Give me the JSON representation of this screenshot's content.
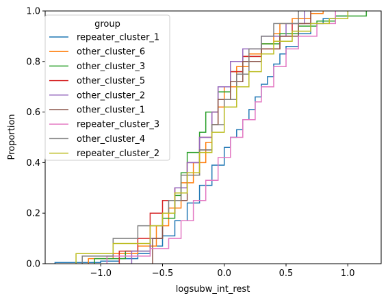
{
  "chart_data": {
    "type": "ecdf",
    "xlabel": "logsubw_int_rest",
    "ylabel": "Proportion",
    "xlim": [
      -1.45,
      1.27
    ],
    "ylim": [
      0,
      1
    ],
    "x_ticks": [
      -1.0,
      -0.5,
      0.0,
      0.5,
      1.0
    ],
    "x_tick_labels": [
      "−1.0",
      "−0.5",
      "0.0",
      "0.5",
      "1.0"
    ],
    "y_ticks": [
      0.0,
      0.2,
      0.4,
      0.6,
      0.8,
      1.0
    ],
    "y_tick_labels": [
      "0.0",
      "0.2",
      "0.4",
      "0.6",
      "0.8",
      "1.0"
    ],
    "grid": false,
    "legend": {
      "title": "group",
      "placement": "top-left"
    },
    "series": [
      {
        "name": "repeater_cluster_1",
        "color": "#1f77b4",
        "points": [
          [
            -1.37,
            0.0
          ],
          [
            -1.37,
            0.005
          ],
          [
            -1.0,
            0.01
          ],
          [
            -0.85,
            0.02
          ],
          [
            -0.7,
            0.04
          ],
          [
            -0.6,
            0.07
          ],
          [
            -0.5,
            0.11
          ],
          [
            -0.4,
            0.17
          ],
          [
            -0.3,
            0.24
          ],
          [
            -0.2,
            0.31
          ],
          [
            -0.1,
            0.39
          ],
          [
            0.0,
            0.46
          ],
          [
            0.05,
            0.5
          ],
          [
            0.1,
            0.53
          ],
          [
            0.15,
            0.57
          ],
          [
            0.2,
            0.61
          ],
          [
            0.25,
            0.66
          ],
          [
            0.3,
            0.71
          ],
          [
            0.35,
            0.74
          ],
          [
            0.4,
            0.79
          ],
          [
            0.45,
            0.83
          ],
          [
            0.5,
            0.86
          ],
          [
            0.6,
            0.91
          ],
          [
            0.7,
            0.95
          ],
          [
            0.8,
            0.97
          ],
          [
            0.9,
            0.98
          ],
          [
            1.0,
            1.0
          ]
        ]
      },
      {
        "name": "other_cluster_6",
        "color": "#ff7f0e",
        "points": [
          [
            -1.1,
            0.0
          ],
          [
            -1.1,
            0.02
          ],
          [
            -0.9,
            0.04
          ],
          [
            -0.7,
            0.07
          ],
          [
            -0.55,
            0.15
          ],
          [
            -0.45,
            0.22
          ],
          [
            -0.35,
            0.32
          ],
          [
            -0.25,
            0.4
          ],
          [
            -0.15,
            0.48
          ],
          [
            -0.1,
            0.55
          ],
          [
            -0.05,
            0.62
          ],
          [
            0.0,
            0.7
          ],
          [
            0.1,
            0.78
          ],
          [
            0.2,
            0.83
          ],
          [
            0.3,
            0.87
          ],
          [
            0.4,
            0.91
          ],
          [
            0.45,
            0.95
          ],
          [
            0.55,
            0.97
          ],
          [
            0.7,
            0.99
          ],
          [
            0.8,
            1.0
          ]
        ]
      },
      {
        "name": "other_cluster_3",
        "color": "#2ca02c",
        "points": [
          [
            -1.05,
            0.0
          ],
          [
            -1.05,
            0.02
          ],
          [
            -0.8,
            0.05
          ],
          [
            -0.6,
            0.1
          ],
          [
            -0.5,
            0.18
          ],
          [
            -0.4,
            0.27
          ],
          [
            -0.35,
            0.36
          ],
          [
            -0.3,
            0.44
          ],
          [
            -0.2,
            0.52
          ],
          [
            -0.15,
            0.6
          ],
          [
            -0.05,
            0.68
          ],
          [
            0.05,
            0.76
          ],
          [
            0.15,
            0.82
          ],
          [
            0.3,
            0.87
          ],
          [
            0.45,
            0.91
          ],
          [
            0.6,
            0.94
          ],
          [
            0.75,
            0.96
          ],
          [
            0.9,
            0.98
          ],
          [
            1.15,
            1.0
          ]
        ]
      },
      {
        "name": "other_cluster_5",
        "color": "#d62728",
        "points": [
          [
            -0.85,
            0.0
          ],
          [
            -0.85,
            0.05
          ],
          [
            -0.7,
            0.1
          ],
          [
            -0.6,
            0.2
          ],
          [
            -0.5,
            0.25
          ],
          [
            -0.4,
            0.3
          ],
          [
            -0.3,
            0.4
          ],
          [
            -0.2,
            0.5
          ],
          [
            -0.1,
            0.6
          ],
          [
            -0.05,
            0.7
          ],
          [
            0.05,
            0.76
          ],
          [
            0.15,
            0.82
          ],
          [
            0.3,
            0.85
          ],
          [
            0.45,
            0.9
          ],
          [
            0.55,
            0.95
          ],
          [
            0.7,
            1.0
          ]
        ]
      },
      {
        "name": "other_cluster_2",
        "color": "#9467bd",
        "points": [
          [
            -0.75,
            0.0
          ],
          [
            -0.75,
            0.05
          ],
          [
            -0.6,
            0.1
          ],
          [
            -0.5,
            0.2
          ],
          [
            -0.4,
            0.3
          ],
          [
            -0.3,
            0.4
          ],
          [
            -0.2,
            0.5
          ],
          [
            -0.1,
            0.6
          ],
          [
            -0.05,
            0.7
          ],
          [
            0.05,
            0.8
          ],
          [
            0.15,
            0.85
          ],
          [
            0.3,
            0.9
          ],
          [
            0.5,
            0.95
          ],
          [
            0.65,
            1.0
          ]
        ]
      },
      {
        "name": "other_cluster_1",
        "color": "#8c564b",
        "points": [
          [
            -0.58,
            0.0
          ],
          [
            -0.58,
            0.1
          ],
          [
            -0.5,
            0.2
          ],
          [
            -0.4,
            0.25
          ],
          [
            -0.3,
            0.35
          ],
          [
            -0.2,
            0.45
          ],
          [
            -0.1,
            0.55
          ],
          [
            -0.05,
            0.65
          ],
          [
            0.05,
            0.72
          ],
          [
            0.15,
            0.8
          ],
          [
            0.3,
            0.85
          ],
          [
            0.45,
            0.9
          ],
          [
            0.6,
            0.95
          ],
          [
            0.7,
            1.0
          ]
        ]
      },
      {
        "name": "repeater_cluster_3",
        "color": "#e377c2",
        "points": [
          [
            -0.95,
            0.0
          ],
          [
            -0.95,
            0.03
          ],
          [
            -0.6,
            0.06
          ],
          [
            -0.45,
            0.1
          ],
          [
            -0.35,
            0.17
          ],
          [
            -0.25,
            0.25
          ],
          [
            -0.15,
            0.33
          ],
          [
            -0.05,
            0.42
          ],
          [
            0.05,
            0.5
          ],
          [
            0.15,
            0.57
          ],
          [
            0.25,
            0.64
          ],
          [
            0.3,
            0.7
          ],
          [
            0.4,
            0.78
          ],
          [
            0.5,
            0.85
          ],
          [
            0.6,
            0.9
          ],
          [
            0.75,
            0.95
          ],
          [
            0.9,
            1.0
          ]
        ]
      },
      {
        "name": "other_cluster_4",
        "color": "#7f7f7f",
        "points": [
          [
            -1.15,
            0.0
          ],
          [
            -1.15,
            0.03
          ],
          [
            -0.9,
            0.1
          ],
          [
            -0.7,
            0.15
          ],
          [
            -0.5,
            0.2
          ],
          [
            -0.45,
            0.25
          ],
          [
            -0.35,
            0.35
          ],
          [
            -0.2,
            0.45
          ],
          [
            -0.1,
            0.55
          ],
          [
            0.0,
            0.65
          ],
          [
            0.1,
            0.75
          ],
          [
            0.2,
            0.85
          ],
          [
            0.3,
            0.9
          ],
          [
            0.4,
            0.95
          ],
          [
            0.6,
            1.0
          ]
        ]
      },
      {
        "name": "repeater_cluster_2",
        "color": "#bcbd22",
        "points": [
          [
            -1.2,
            0.0
          ],
          [
            -1.2,
            0.04
          ],
          [
            -0.9,
            0.08
          ],
          [
            -0.6,
            0.15
          ],
          [
            -0.5,
            0.2
          ],
          [
            -0.4,
            0.28
          ],
          [
            -0.3,
            0.36
          ],
          [
            -0.2,
            0.44
          ],
          [
            -0.1,
            0.52
          ],
          [
            0.0,
            0.62
          ],
          [
            0.1,
            0.7
          ],
          [
            0.2,
            0.76
          ],
          [
            0.3,
            0.83
          ],
          [
            0.4,
            0.88
          ],
          [
            0.55,
            0.92
          ],
          [
            0.7,
            0.95
          ],
          [
            0.85,
            0.97
          ],
          [
            1.0,
            1.0
          ]
        ]
      }
    ]
  }
}
